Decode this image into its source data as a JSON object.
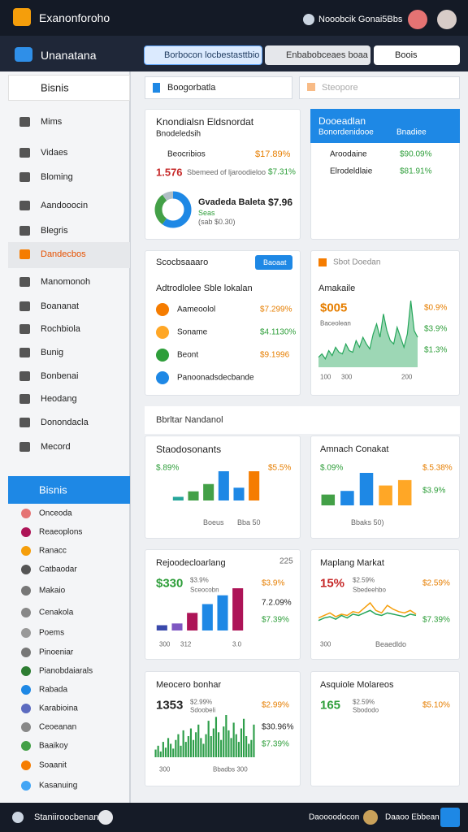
{
  "topbar": {
    "title": "Exanonforoho",
    "user": "Nooobcik Gonai5Bbs"
  },
  "nav": {
    "title": "Unanatana",
    "tabs": [
      "Borbocon locbestasttbio",
      "Enbabobceaes boaa",
      "Boois"
    ]
  },
  "sidebar": {
    "search": "Bisnis",
    "items": [
      "Mims",
      "Vidaes",
      "Bloming",
      "Aandooocin",
      "Blegris",
      "Dandecbos",
      "Manomonoh",
      "Boananat",
      "Rochbiola",
      "Bunig",
      "Bonbenai",
      "Heodang",
      "Donondacla",
      "Mecord"
    ],
    "section": "Bisnis",
    "section_items": [
      "Onceoda",
      "Reaeoplons",
      "Ranacc",
      "Catbaodar",
      "Makaio",
      "Cenakola",
      "Poems",
      "Pinoeniar",
      "Pianobdaiarals",
      "Rabada",
      "Karabioina",
      "Ceoeanan",
      "Baaikoy",
      "Soaanit",
      "Kasanuing"
    ]
  },
  "search": {
    "left": "Boogorbatla",
    "right": "Steopore"
  },
  "section_title": "Bbrltar Nandanol",
  "cards": [
    {
      "title": "Knondialsn Eldsnordat",
      "texts": [
        "Bnodeledsih",
        "Beocribios",
        "$17.89%",
        "1.576",
        "Sbemeed of ljaroodieloo",
        "$7.31%",
        "Gvadeda Baleta",
        "$7.96",
        "Seas",
        "(sab $0.30)"
      ],
      "chart": {
        "type": "donut",
        "values": [
          60,
          30,
          10
        ],
        "colors": [
          "#1e88e5",
          "#43a047",
          "#b0bec5"
        ]
      }
    },
    {
      "title": "Dooeadlan",
      "texts": [
        "Bonordenidooe",
        "Bnadiee",
        "Aroodaine",
        "$90.09%",
        "Elrodeldlaie",
        "$81.91%"
      ]
    },
    {
      "title": "Scocbsaaaro",
      "texts": [
        "Baoaat",
        "Adtrodlolee Sble lokalan",
        "Aameoolol",
        "$7.299%",
        "Soname",
        "$4.1130%",
        "Beont",
        "$9.1996",
        "Panoonadsdecbande"
      ]
    },
    {
      "title": "Sbot Doedan",
      "texts": [
        "Amakaile",
        "$005",
        "Baceolean",
        "$0.9%",
        "$3.9%",
        "$1.3%",
        "100",
        "300",
        "200"
      ],
      "chart": {
        "type": "area",
        "color": "#26a65b",
        "values": [
          6,
          8,
          5,
          10,
          7,
          12,
          9,
          8,
          14,
          10,
          9,
          16,
          12,
          18,
          14,
          11,
          20,
          26,
          18,
          32,
          22,
          16,
          14,
          24,
          18,
          12,
          20,
          40,
          22,
          18
        ]
      }
    },
    {
      "title": "Staodosonants",
      "texts": [
        "$.89%",
        "$5.5%",
        "Boeus",
        "Bba 50"
      ],
      "chart": {
        "type": "bar",
        "values": [
          4,
          10,
          18,
          32,
          14,
          32
        ],
        "colors": [
          "#26a69a",
          "#43a047",
          "#43a047",
          "#1e88e5",
          "#1e88e5",
          "#f57c00"
        ]
      }
    },
    {
      "title": "Amnach Conakat",
      "texts": [
        "$.09%",
        "$.5.38%",
        "$3.9%",
        "Bbaks 50)"
      ],
      "chart": {
        "type": "bar",
        "values": [
          12,
          16,
          36,
          22,
          28
        ],
        "colors": [
          "#43a047",
          "#1e88e5",
          "#1e88e5",
          "#ffa726",
          "#ffa726"
        ]
      }
    },
    {
      "title": "Rejoodecloarlang",
      "texts": [
        "225",
        "$330",
        "$3.9%",
        "Sceocobn",
        "$3.9%",
        "7.2.09%",
        "$7.39%",
        "300",
        "312",
        "3.0"
      ],
      "chart": {
        "type": "bar",
        "values": [
          6,
          8,
          20,
          30,
          40,
          48
        ],
        "colors": [
          "#3949ab",
          "#7e57c2",
          "#ad1457",
          "#1e88e5",
          "#1e88e5",
          "#ad1457"
        ]
      }
    },
    {
      "title": "Maplang Markat",
      "texts": [
        "15%",
        "$2.59%",
        "Sbedeehbo",
        "$2.59%",
        "$7.39%",
        "300",
        "Beaedldo"
      ],
      "chart": {
        "type": "line",
        "series": [
          {
            "color": "#f59e0b",
            "values": [
              10,
              12,
              14,
              11,
              13,
              12,
              15,
              14,
              18,
              22,
              16,
              14,
              20,
              17,
              15,
              14,
              16,
              13
            ]
          },
          {
            "color": "#26a65b",
            "values": [
              8,
              10,
              11,
              9,
              12,
              10,
              13,
              12,
              14,
              16,
              13,
              12,
              14,
              13,
              12,
              11,
              13,
              12
            ]
          }
        ]
      }
    },
    {
      "title": "Meocero bonhar",
      "texts": [
        "1353",
        "$2.99%",
        "Sdoobeli",
        "$2.99%",
        "$30.96%",
        "$7.39%",
        "300",
        "Bbadbs 300"
      ],
      "chart": {
        "type": "bar",
        "color": "#2e9e4a",
        "values": [
          8,
          12,
          6,
          16,
          10,
          20,
          14,
          9,
          18,
          24,
          12,
          28,
          16,
          22,
          30,
          18,
          26,
          34,
          20,
          14,
          24,
          38,
          22,
          30,
          42,
          26,
          18,
          32,
          44,
          28,
          20,
          36,
          24,
          16,
          30,
          40,
          22,
          14,
          18,
          34
        ]
      }
    },
    {
      "title": "Asquiole Molareos",
      "texts": [
        "165",
        "$2.59%",
        "Sbododo",
        "$5.10%"
      ]
    }
  ],
  "bottom": {
    "left": "Staniiroocbenan",
    "center": "Daoooodocon",
    "right": "Daaoo Ebbean"
  }
}
